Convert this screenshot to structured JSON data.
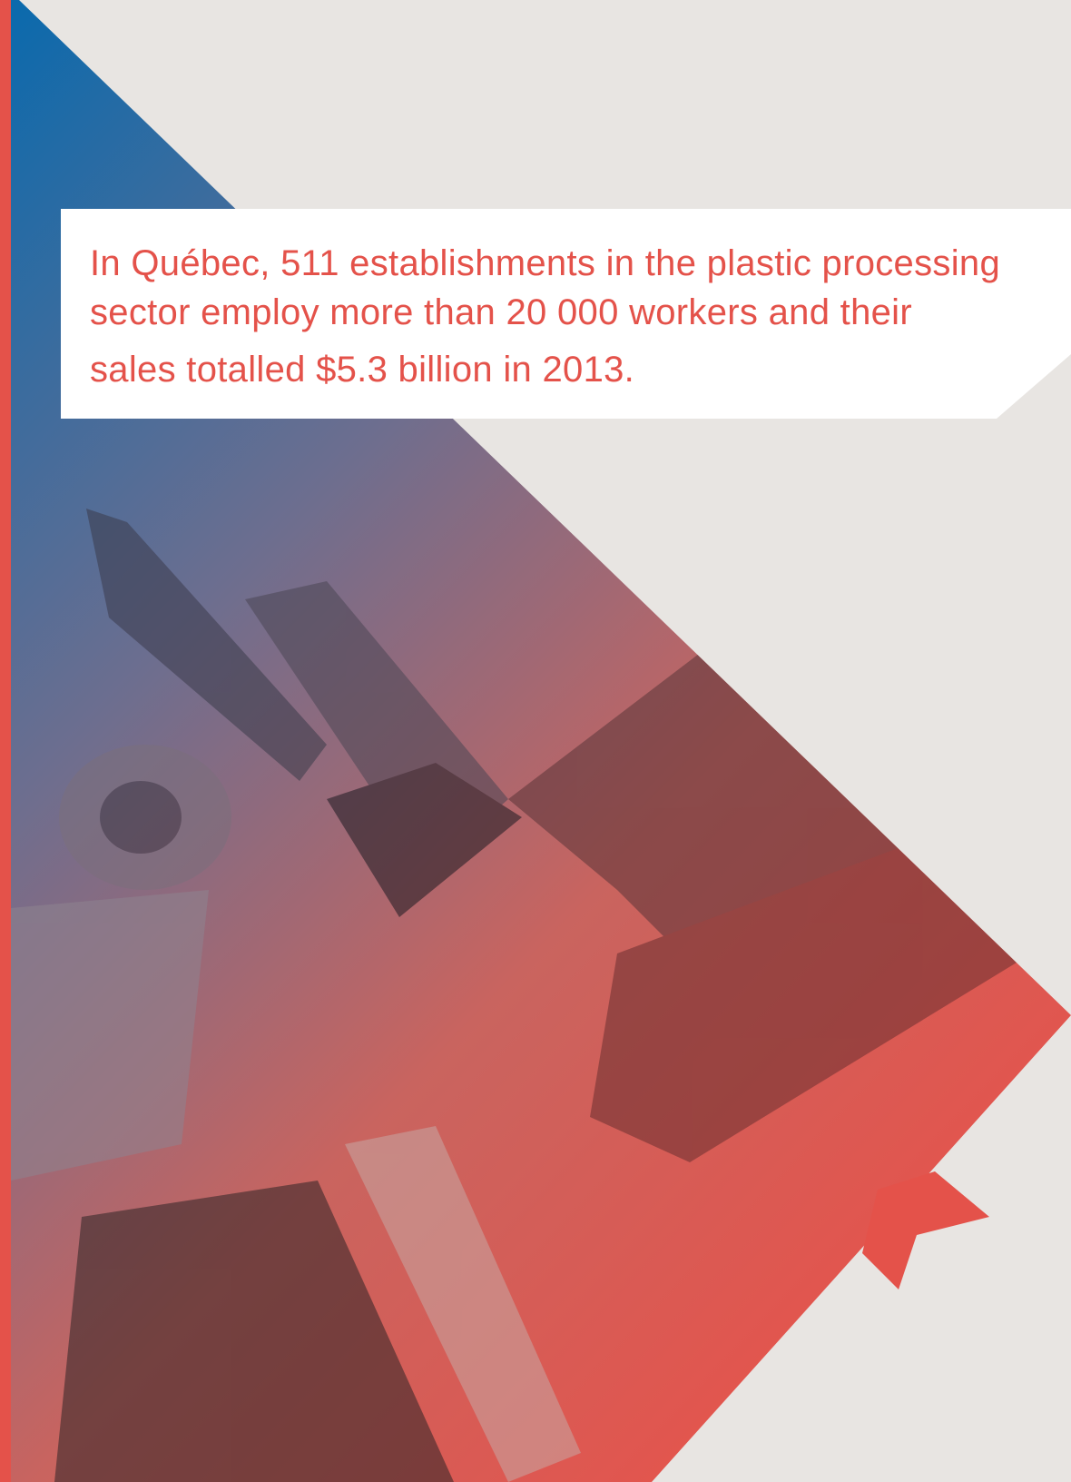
{
  "statement": {
    "lines": [
      "In Québec, 511 establishments in the plastic processing",
      "sector employ more than 20 000 workers and their",
      "sales totalled $5.3 billion in 2013."
    ]
  }
}
